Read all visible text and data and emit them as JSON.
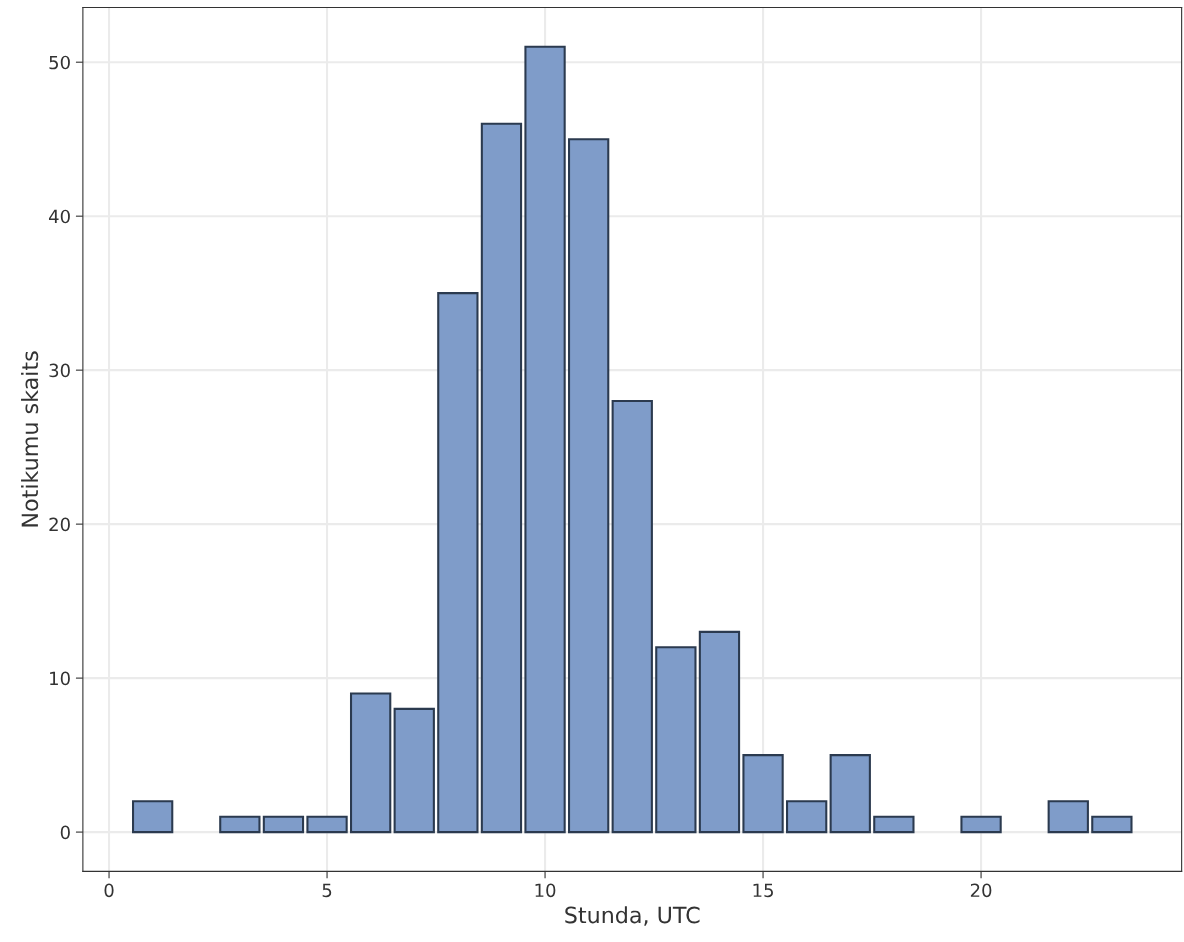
{
  "chart_data": {
    "type": "bar",
    "xlabel": "Stunda, UTC",
    "ylabel": "Notikumu skaits",
    "x": [
      1,
      3,
      4,
      5,
      6,
      7,
      8,
      9,
      10,
      11,
      12,
      13,
      14,
      15,
      16,
      17,
      18,
      20,
      22,
      23
    ],
    "values": [
      2,
      1,
      1,
      1,
      9,
      8,
      35,
      46,
      51,
      45,
      28,
      12,
      13,
      5,
      2,
      5,
      1,
      1,
      2,
      1
    ],
    "color": "#7f9cc9",
    "xlim": [
      -0.6,
      24.6
    ],
    "xticks": [
      0,
      5,
      10,
      15,
      20
    ],
    "ylim": [
      -2.55,
      53.55
    ],
    "yticks": [
      0,
      10,
      20,
      30,
      40,
      50
    ],
    "grid": true
  }
}
